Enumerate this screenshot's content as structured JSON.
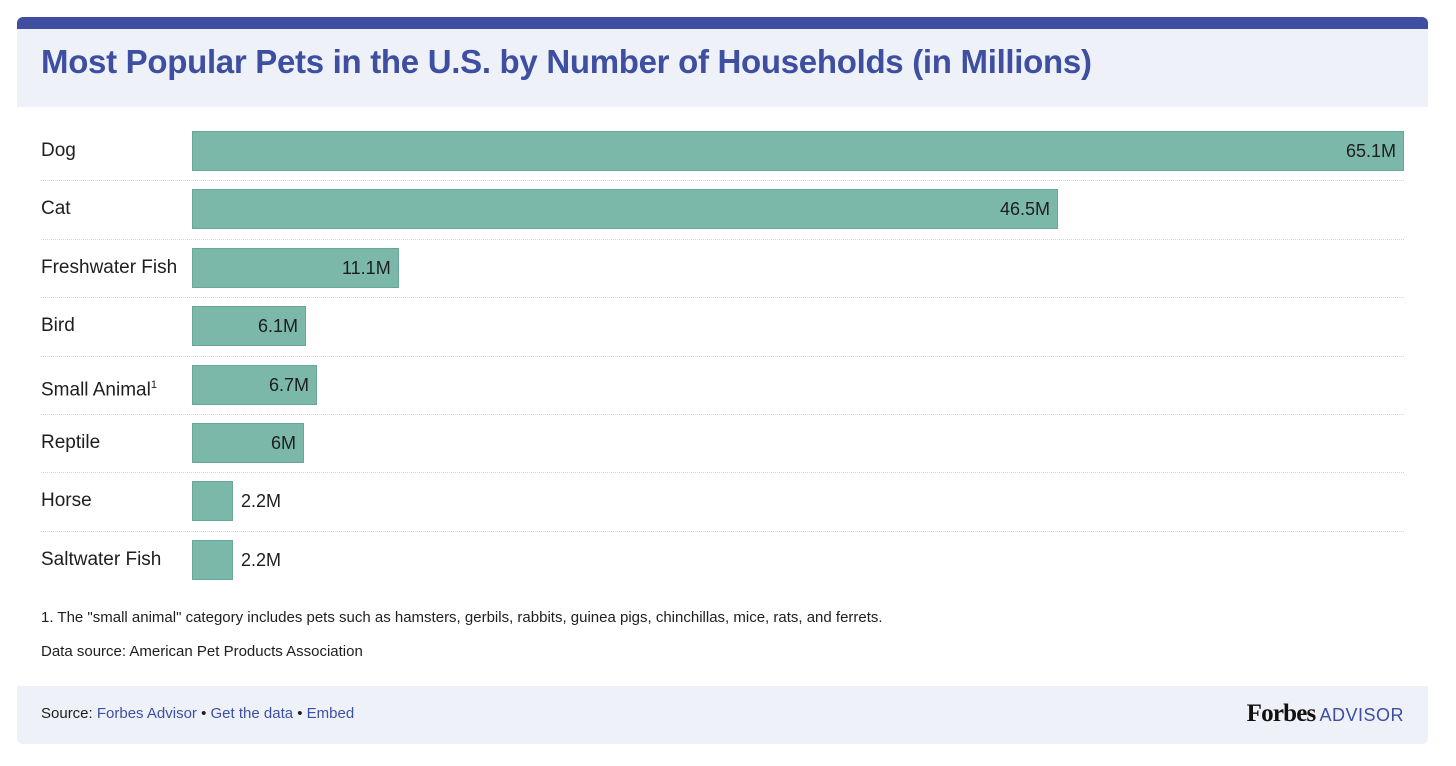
{
  "colors": {
    "title": "#3e4ea1",
    "bar": "#7bb8a9",
    "bar_border": "#69a897",
    "accent_bar": "#3e4ea1",
    "link": "#3c4fa6"
  },
  "header": {
    "title": "Most Popular Pets in the U.S. by Number of Households (in Millions)"
  },
  "chart_data": {
    "type": "bar",
    "orientation": "horizontal",
    "title": "Most Popular Pets in the U.S. by Number of Households (in Millions)",
    "categories": [
      "Dog",
      "Cat",
      "Freshwater Fish",
      "Bird",
      "Small Animal",
      "Reptile",
      "Horse",
      "Saltwater Fish"
    ],
    "values": [
      65.1,
      46.5,
      11.1,
      6.1,
      6.7,
      6,
      2.2,
      2.2
    ],
    "value_labels": [
      "65.1M",
      "46.5M",
      "11.1M",
      "6.1M",
      "6.7M",
      "6M",
      "2.2M",
      "2.2M"
    ],
    "footnote_markers": [
      "",
      "",
      "",
      "",
      "1",
      "",
      "",
      ""
    ],
    "xlim": [
      0,
      65.1
    ],
    "grid": false,
    "legend": "none"
  },
  "notes": {
    "footnote": "1. The \"small animal\" category includes pets such as hamsters, gerbils, rabbits, guinea pigs, chinchillas, mice, rats, and ferrets.",
    "data_source": "Data source: American Pet Products Association"
  },
  "footer": {
    "source_label": "Source: ",
    "links": [
      "Forbes Advisor",
      "Get the data",
      "Embed"
    ],
    "separator": " • ",
    "logo_word": "Forbes",
    "logo_suffix": "ADVISOR"
  }
}
